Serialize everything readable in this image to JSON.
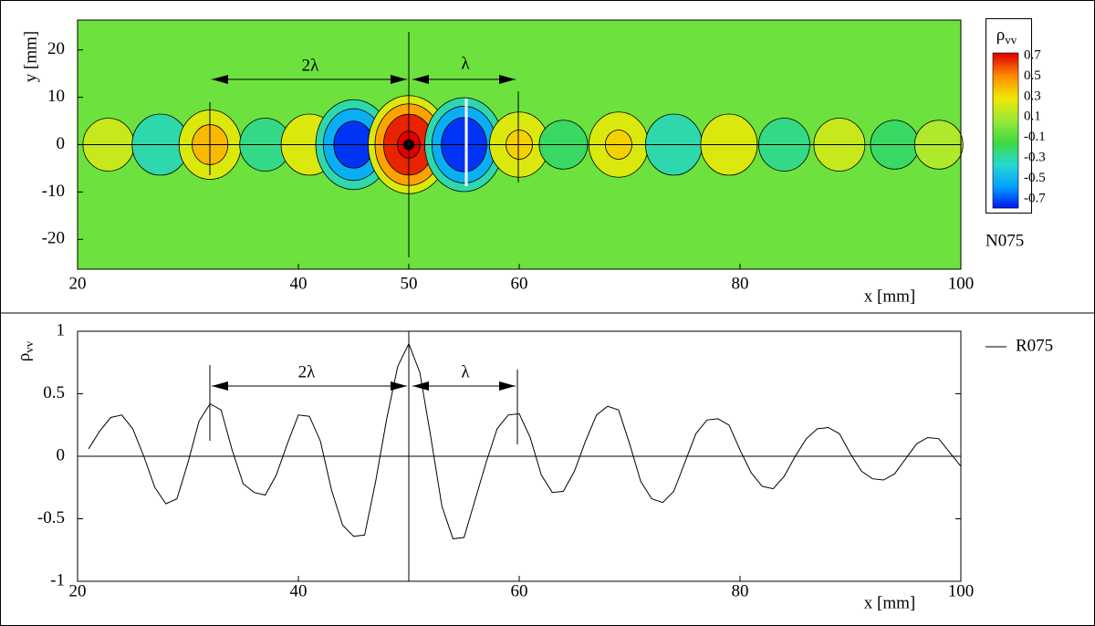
{
  "chart_data": [
    {
      "type": "contour",
      "label": "N075",
      "xlabel": "x [mm]",
      "ylabel": "y [mm]",
      "colorbar_label": "ρ",
      "colorbar_label_sub": "vv",
      "annotations": [
        "2λ",
        "λ"
      ],
      "x": [
        22.8,
        27.5,
        32,
        37,
        41,
        45,
        50,
        55,
        60,
        64,
        69,
        74,
        79,
        84,
        89,
        94,
        98
      ],
      "values": [
        0.2,
        -0.3,
        0.4,
        -0.2,
        0.3,
        -0.65,
        0.75,
        -0.7,
        0.35,
        -0.15,
        0.35,
        -0.3,
        0.3,
        -0.2,
        0.2,
        -0.15,
        0.15
      ],
      "xlim": [
        20,
        100
      ],
      "xticks": [
        20,
        40,
        50,
        60,
        80,
        100
      ],
      "ylim": [
        -26.3,
        26.3
      ],
      "yticks": [
        20,
        10,
        0,
        -10,
        -20
      ],
      "colorbar_ticks": [
        0.7,
        0.5,
        0.3,
        0.1,
        -0.1,
        -0.3,
        -0.5,
        -0.7
      ],
      "colors": [
        "#e00000",
        "#ff8c00",
        "#f0e800",
        "#9be83a",
        "#3fd93f",
        "#28d8d0",
        "#00a0ff",
        "#0010f0"
      ]
    },
    {
      "type": "line",
      "ylabel": "ρ",
      "ylabel_sub": "vv",
      "xlabel": "x [mm]",
      "annotations": [
        "2λ",
        "λ"
      ],
      "x": [
        21,
        22,
        23,
        24,
        25,
        26,
        27,
        28,
        29,
        30,
        31,
        32,
        33,
        34,
        35,
        36,
        37,
        38,
        39,
        40,
        41,
        42,
        43,
        44,
        45,
        46,
        47,
        48,
        49,
        50,
        51,
        52,
        53,
        54,
        55,
        56,
        57,
        58,
        59,
        60,
        61,
        62,
        63,
        64,
        65,
        66,
        67,
        68,
        69,
        70,
        71,
        72,
        73,
        74,
        75,
        76,
        77,
        78,
        79,
        80,
        81,
        82,
        83,
        84,
        85,
        86,
        87,
        88,
        89,
        90,
        91,
        92,
        93,
        94,
        95,
        96,
        97,
        98,
        99,
        100
      ],
      "series": [
        {
          "name": "R075",
          "color": "#000000",
          "values": [
            0.06,
            0.2,
            0.31,
            0.33,
            0.22,
            0.0,
            -0.25,
            -0.38,
            -0.34,
            -0.05,
            0.28,
            0.42,
            0.37,
            0.05,
            -0.22,
            -0.29,
            -0.31,
            -0.15,
            0.1,
            0.33,
            0.32,
            0.12,
            -0.27,
            -0.55,
            -0.64,
            -0.63,
            -0.2,
            0.3,
            0.72,
            0.9,
            0.67,
            0.15,
            -0.4,
            -0.66,
            -0.65,
            -0.35,
            -0.05,
            0.22,
            0.33,
            0.34,
            0.15,
            -0.15,
            -0.29,
            -0.28,
            -0.12,
            0.12,
            0.33,
            0.4,
            0.37,
            0.1,
            -0.2,
            -0.34,
            -0.37,
            -0.28,
            -0.05,
            0.18,
            0.29,
            0.3,
            0.25,
            0.05,
            -0.13,
            -0.24,
            -0.26,
            -0.16,
            0.0,
            0.14,
            0.22,
            0.23,
            0.18,
            0.02,
            -0.12,
            -0.18,
            -0.19,
            -0.14,
            -0.02,
            0.1,
            0.15,
            0.14,
            0.03,
            -0.08
          ]
        }
      ],
      "xlim": [
        20,
        100
      ],
      "xticks": [
        20,
        40,
        60,
        80,
        100
      ],
      "ylim": [
        -1,
        1
      ],
      "yticks": [
        1,
        0.5,
        0,
        -0.5,
        -1
      ]
    }
  ]
}
